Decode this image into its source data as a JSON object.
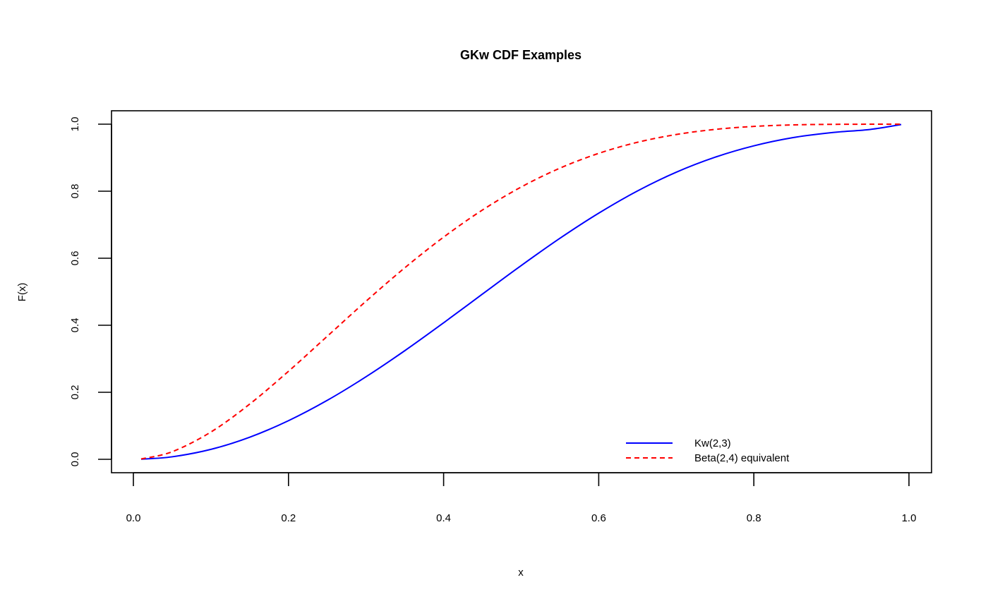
{
  "chart_data": {
    "type": "line",
    "title": "GKw CDF Examples",
    "xlabel": "x",
    "ylabel": "F(x)",
    "xlim": [
      0.0,
      1.0
    ],
    "ylim": [
      0.0,
      1.0
    ],
    "x_ticks": [
      "0.0",
      "0.2",
      "0.4",
      "0.6",
      "0.8",
      "1.0"
    ],
    "y_ticks": [
      "0.0",
      "0.2",
      "0.4",
      "0.6",
      "0.8",
      "1.0"
    ],
    "grid": false,
    "legend_position": "bottom-right",
    "series": [
      {
        "name": "Kw(2,3)",
        "color": "#0000ff",
        "line_style": "solid",
        "x": [
          0.01,
          0.05,
          0.1,
          0.15,
          0.2,
          0.25,
          0.3,
          0.35,
          0.4,
          0.45,
          0.5,
          0.55,
          0.6,
          0.65,
          0.7,
          0.75,
          0.8,
          0.85,
          0.9,
          0.95,
          0.99
        ],
        "y": [
          0.0003,
          0.0075,
          0.0297,
          0.066,
          0.1153,
          0.176,
          0.2464,
          0.3242,
          0.4073,
          0.493,
          0.5781,
          0.6596,
          0.7345,
          0.8008,
          0.8567,
          0.9014,
          0.9354,
          0.9597,
          0.9748,
          0.9843,
          0.999
        ]
      },
      {
        "name": "Beta(2,4) equivalent",
        "color": "#ff0000",
        "line_style": "dashed",
        "x": [
          0.01,
          0.05,
          0.1,
          0.15,
          0.2,
          0.25,
          0.3,
          0.35,
          0.4,
          0.45,
          0.5,
          0.55,
          0.6,
          0.65,
          0.7,
          0.75,
          0.8,
          0.85,
          0.9,
          0.95,
          0.99
        ],
        "y": [
          0.001,
          0.0226,
          0.0815,
          0.1648,
          0.2627,
          0.3672,
          0.4718,
          0.5716,
          0.663,
          0.7438,
          0.8125,
          0.8688,
          0.913,
          0.946,
          0.9692,
          0.9844,
          0.9933,
          0.9978,
          0.9995,
          0.9999,
          1.0
        ]
      }
    ]
  }
}
